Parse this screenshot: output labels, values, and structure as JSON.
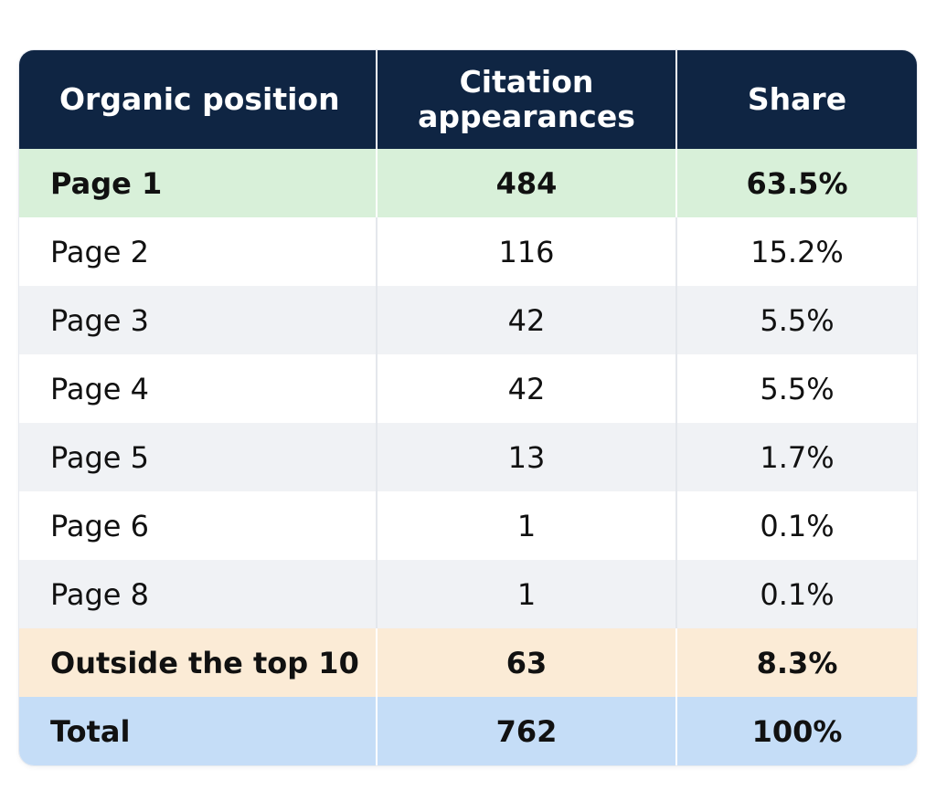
{
  "chart_data": {
    "type": "table",
    "columns": [
      "Organic position",
      "Citation appearances",
      "Share"
    ],
    "rows": [
      {
        "position": "Page 1",
        "appearances": "484",
        "share": "63.5%"
      },
      {
        "position": "Page 2",
        "appearances": "116",
        "share": "15.2%"
      },
      {
        "position": "Page 3",
        "appearances": "42",
        "share": "5.5%"
      },
      {
        "position": "Page 4",
        "appearances": "42",
        "share": "5.5%"
      },
      {
        "position": "Page 5",
        "appearances": "13",
        "share": "1.7%"
      },
      {
        "position": "Page 6",
        "appearances": "1",
        "share": "0.1%"
      },
      {
        "position": "Page 8",
        "appearances": "1",
        "share": "0.1%"
      },
      {
        "position": "Outside the top 10",
        "appearances": "63",
        "share": "8.3%"
      },
      {
        "position": "Total",
        "appearances": "762",
        "share": "100%"
      }
    ]
  },
  "colors": {
    "header": "#0f2543",
    "page1_highlight": "#d8f0d9",
    "outside_highlight": "#fbebd6",
    "total_highlight": "#c5ddf7",
    "stripe": "#f0f2f5"
  }
}
